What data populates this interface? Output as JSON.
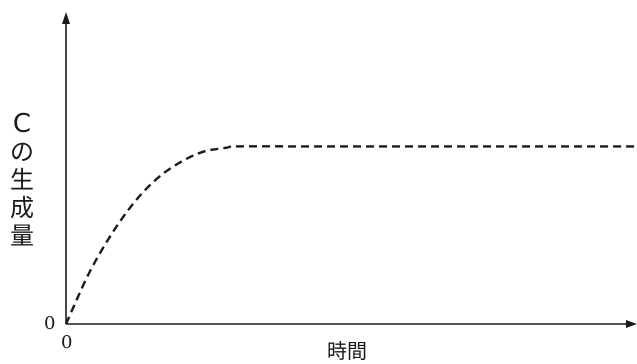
{
  "chart_data": {
    "type": "line",
    "title": "",
    "xlabel": "時間",
    "ylabel": "Cの生成量",
    "x_ticks": [
      "0"
    ],
    "y_ticks": [
      "0"
    ],
    "xlim": [
      0,
      10
    ],
    "ylim": [
      0,
      10
    ],
    "grid": false,
    "legend": "none",
    "series": [
      {
        "style": "dashed",
        "color": "#1a1a1a",
        "x": [
          0,
          0.4,
          0.8,
          1.2,
          1.6,
          2.0,
          2.4,
          2.8,
          3.0,
          4.0,
          5.0,
          6.0,
          7.0,
          8.0,
          9.0,
          10.0
        ],
        "y": [
          0,
          1.9,
          3.4,
          4.6,
          5.5,
          6.1,
          6.5,
          6.65,
          6.7,
          6.7,
          6.7,
          6.7,
          6.7,
          6.7,
          6.7,
          6.7
        ]
      }
    ]
  }
}
